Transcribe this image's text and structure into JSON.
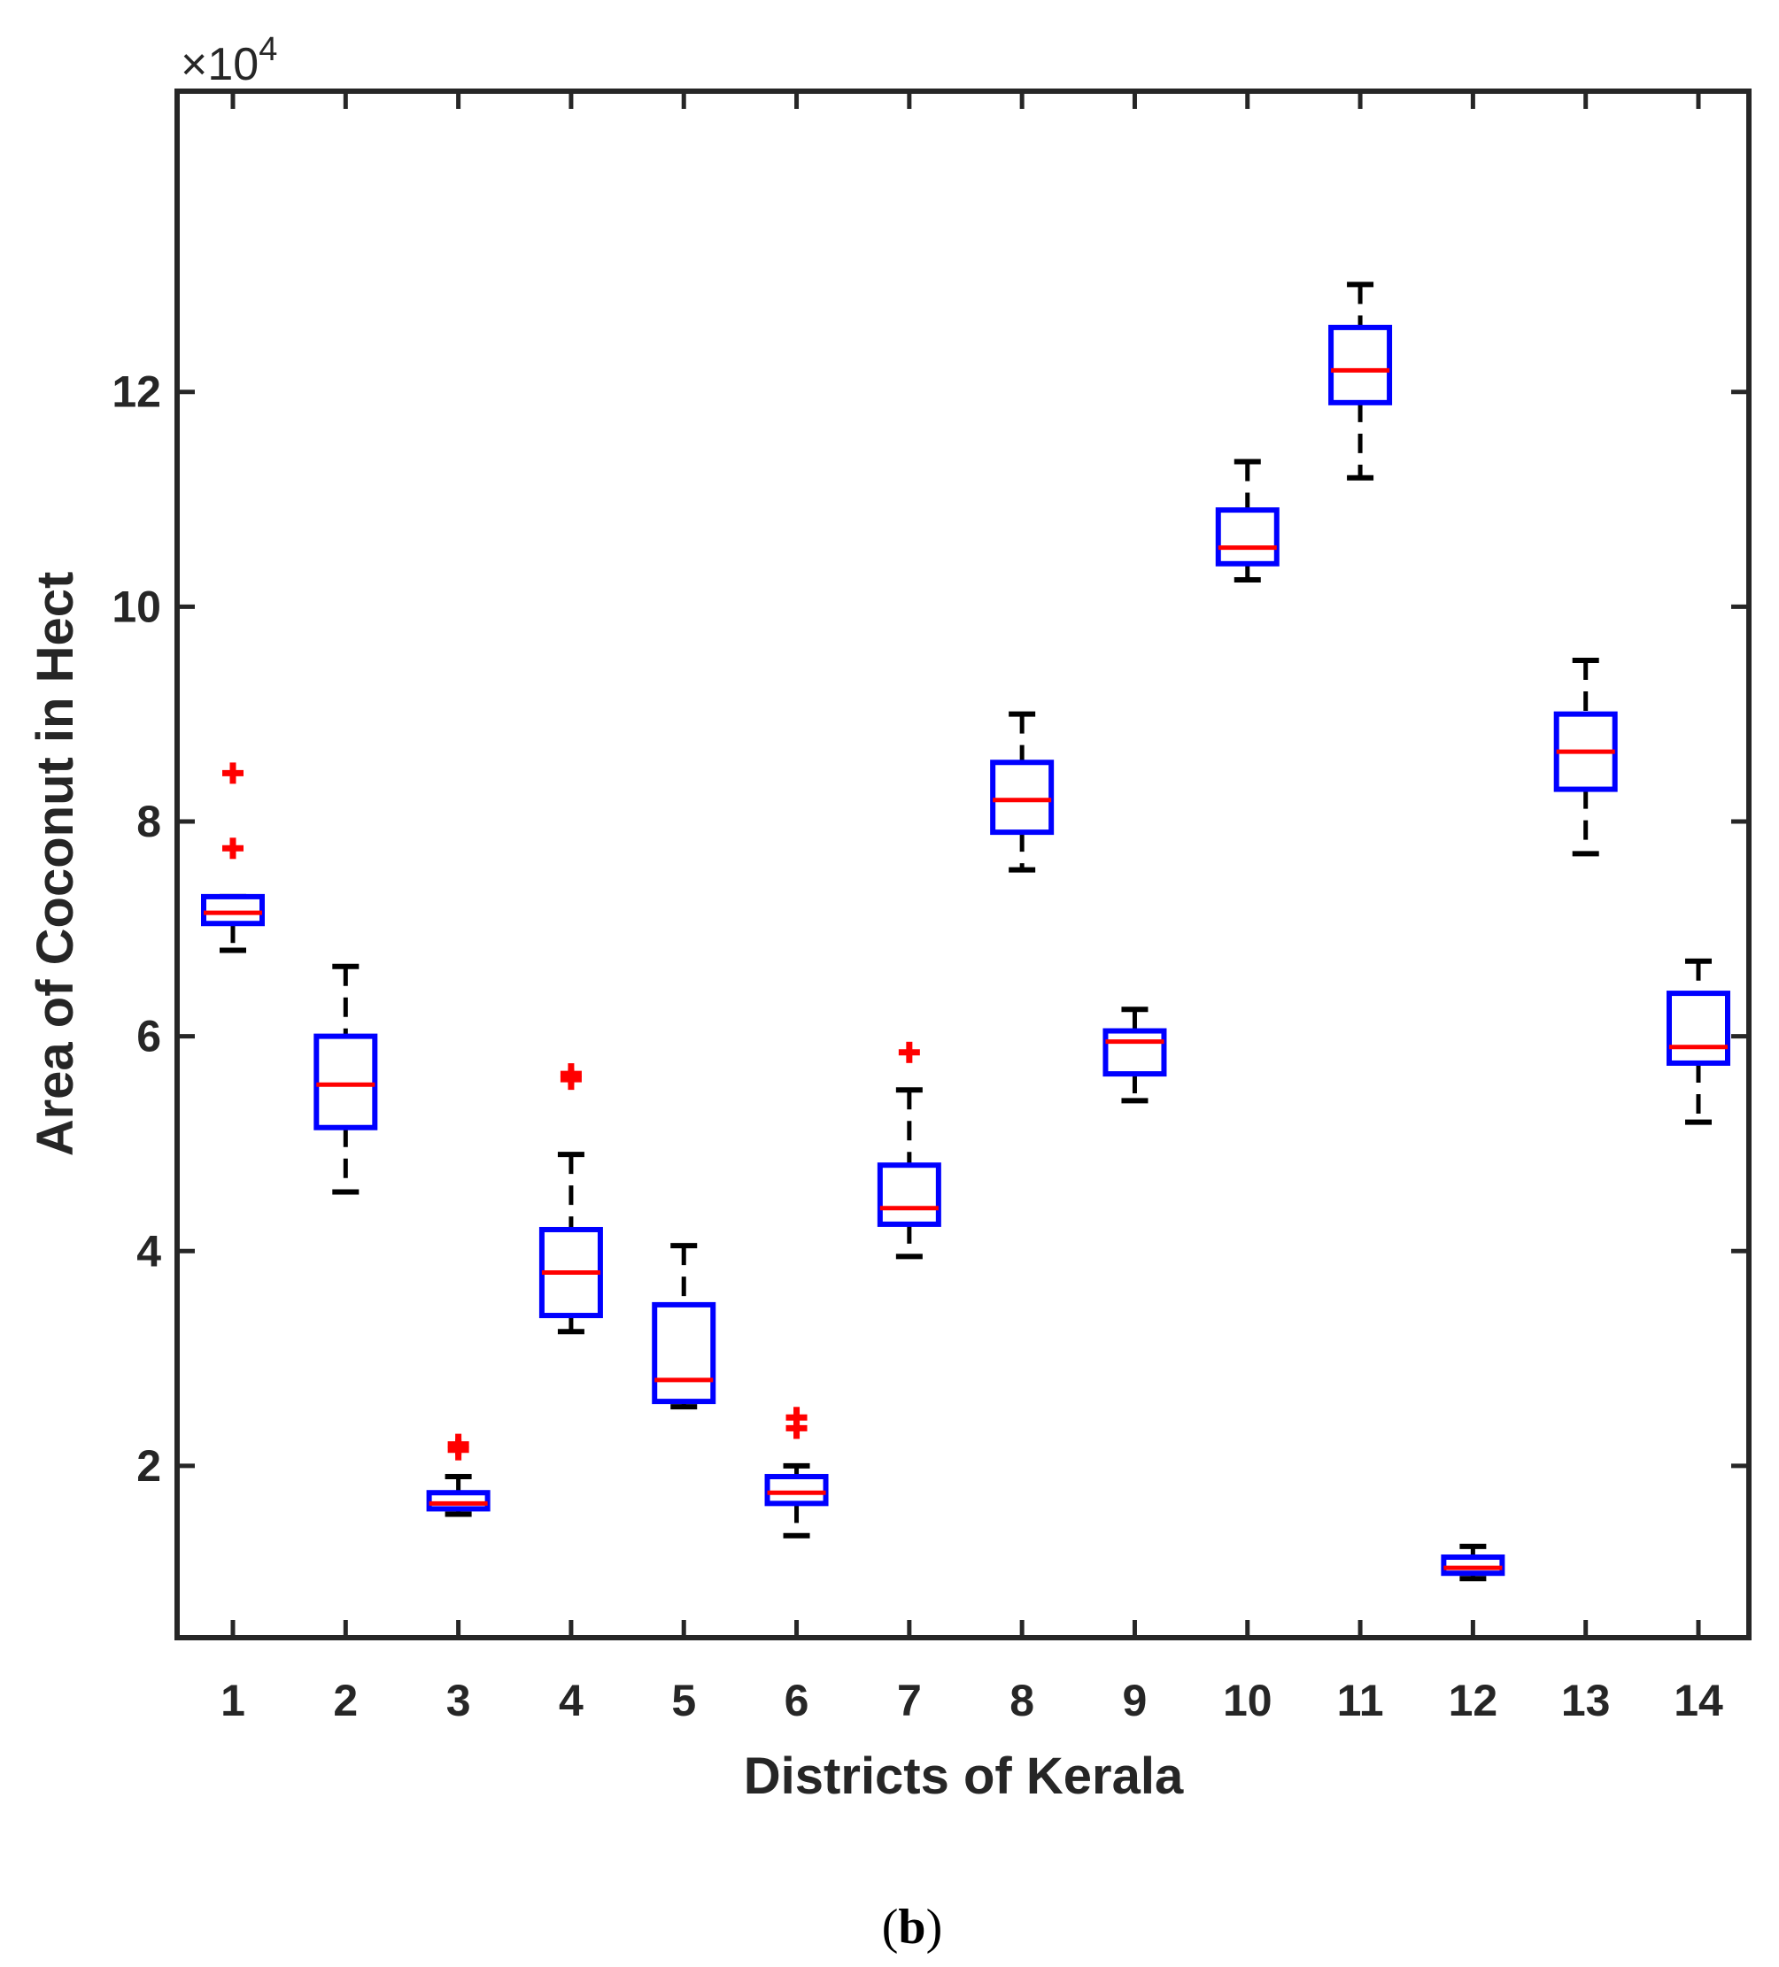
{
  "chart_data": {
    "type": "boxplot",
    "xlabel": "Districts of Kerala",
    "ylabel": "Area of Coconut in Hect",
    "y_exponent_base": "×10",
    "y_exponent_power": "4",
    "y_multiplier": 10000,
    "ylim": [
      0.4,
      14.8
    ],
    "yticks": [
      2,
      4,
      6,
      8,
      10,
      12
    ],
    "ytick_labels": [
      "2",
      "4",
      "6",
      "8",
      "10",
      "12"
    ],
    "categories": [
      "1",
      "2",
      "3",
      "4",
      "5",
      "6",
      "7",
      "8",
      "9",
      "10",
      "11",
      "12",
      "13",
      "14"
    ],
    "boxes": [
      {
        "category": "1",
        "whisker_low": 6.8,
        "q1": 7.05,
        "median": 7.15,
        "q3": 7.3,
        "whisker_high": 7.3,
        "outliers": [
          7.75,
          8.45
        ]
      },
      {
        "category": "2",
        "whisker_low": 4.55,
        "q1": 5.15,
        "median": 5.55,
        "q3": 6.0,
        "whisker_high": 6.65,
        "outliers": []
      },
      {
        "category": "3",
        "whisker_low": 1.55,
        "q1": 1.6,
        "median": 1.65,
        "q3": 1.75,
        "whisker_high": 1.9,
        "outliers": [
          2.15,
          2.2
        ]
      },
      {
        "category": "4",
        "whisker_low": 3.25,
        "q1": 3.4,
        "median": 3.8,
        "q3": 4.2,
        "whisker_high": 4.9,
        "outliers": [
          5.6,
          5.65
        ]
      },
      {
        "category": "5",
        "whisker_low": 2.55,
        "q1": 2.6,
        "median": 2.8,
        "q3": 3.5,
        "whisker_high": 4.05,
        "outliers": []
      },
      {
        "category": "6",
        "whisker_low": 1.35,
        "q1": 1.65,
        "median": 1.75,
        "q3": 1.9,
        "whisker_high": 2.0,
        "outliers": [
          2.35,
          2.45
        ]
      },
      {
        "category": "7",
        "whisker_low": 3.95,
        "q1": 4.25,
        "median": 4.4,
        "q3": 4.8,
        "whisker_high": 5.5,
        "outliers": [
          5.85
        ]
      },
      {
        "category": "8",
        "whisker_low": 7.55,
        "q1": 7.9,
        "median": 8.2,
        "q3": 8.55,
        "whisker_high": 9.0,
        "outliers": []
      },
      {
        "category": "9",
        "whisker_low": 5.4,
        "q1": 5.65,
        "median": 5.95,
        "q3": 6.05,
        "whisker_high": 6.25,
        "outliers": []
      },
      {
        "category": "10",
        "whisker_low": 10.25,
        "q1": 10.4,
        "median": 10.55,
        "q3": 10.9,
        "whisker_high": 11.35,
        "outliers": []
      },
      {
        "category": "11",
        "whisker_low": 11.2,
        "q1": 11.9,
        "median": 12.2,
        "q3": 12.6,
        "whisker_high": 13.0,
        "outliers": []
      },
      {
        "category": "12",
        "whisker_low": 0.95,
        "q1": 1.0,
        "median": 1.05,
        "q3": 1.15,
        "whisker_high": 1.25,
        "outliers": []
      },
      {
        "category": "13",
        "whisker_low": 7.7,
        "q1": 8.3,
        "median": 8.65,
        "q3": 9.0,
        "whisker_high": 9.5,
        "outliers": []
      },
      {
        "category": "14",
        "whisker_low": 5.2,
        "q1": 5.75,
        "median": 5.9,
        "q3": 6.4,
        "whisker_high": 6.7,
        "outliers": []
      }
    ],
    "colors": {
      "box": "#0000ff",
      "median": "#ff0000",
      "whisker": "#000000",
      "outlier": "#ff0000",
      "axes": "#262626"
    }
  },
  "caption": {
    "open": "(",
    "letter": "b",
    "close": ")"
  }
}
